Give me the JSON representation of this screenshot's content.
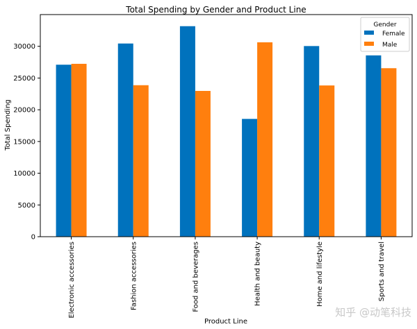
{
  "chart_data": {
    "type": "bar",
    "title": "Total Spending by Gender and Product Line",
    "xlabel": "Product Line",
    "ylabel": "Total Spending",
    "categories": [
      "Electronic accessories",
      "Fashion accessories",
      "Food and beverages",
      "Health and beauty",
      "Home and lifestyle",
      "Sports and travel"
    ],
    "series": [
      {
        "name": "Female",
        "values": [
          27100,
          30440,
          33170,
          18560,
          30040,
          28570
        ],
        "color": "#0072bd"
      },
      {
        "name": "Male",
        "values": [
          27240,
          23870,
          22970,
          30630,
          23830,
          26550
        ],
        "color": "#ff7f0e"
      }
    ],
    "ylim": [
      0,
      35000
    ],
    "yticks": [
      0,
      5000,
      10000,
      15000,
      20000,
      25000,
      30000
    ],
    "legend": {
      "title": "Gender",
      "placement": "top-right"
    },
    "grid": false
  },
  "watermark": "知乎 @动笔科技"
}
